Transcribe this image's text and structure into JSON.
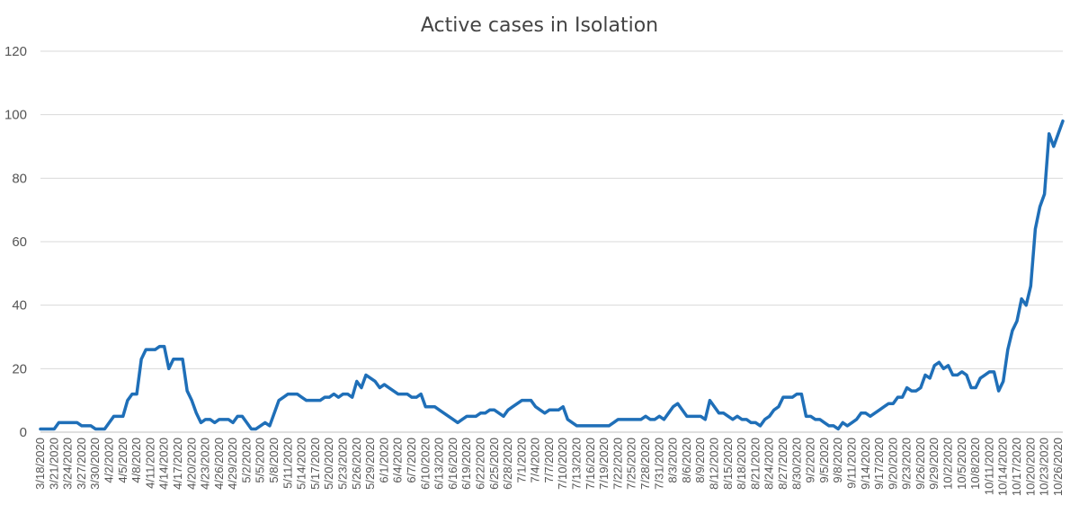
{
  "chart_data": {
    "type": "line",
    "title": "Active cases in Isolation",
    "xlabel": "",
    "ylabel": "",
    "ylim": [
      0,
      120
    ],
    "yticks": [
      0,
      20,
      40,
      60,
      80,
      100,
      120
    ],
    "grid": true,
    "legend": "none",
    "line_color": "#1f6fb8",
    "x_tick_labels": [
      "3/18/2020",
      "3/21/2020",
      "3/24/2020",
      "3/27/2020",
      "3/30/2020",
      "4/2/2020",
      "4/5/2020",
      "4/8/2020",
      "4/11/2020",
      "4/14/2020",
      "4/17/2020",
      "4/20/2020",
      "4/23/2020",
      "4/26/2020",
      "4/29/2020",
      "5/2/2020",
      "5/5/2020",
      "5/8/2020",
      "5/11/2020",
      "5/14/2020",
      "5/17/2020",
      "5/20/2020",
      "5/23/2020",
      "5/26/2020",
      "5/29/2020",
      "6/1/2020",
      "6/4/2020",
      "6/7/2020",
      "6/10/2020",
      "6/13/2020",
      "6/16/2020",
      "6/19/2020",
      "6/22/2020",
      "6/25/2020",
      "6/28/2020",
      "7/1/2020",
      "7/4/2020",
      "7/7/2020",
      "7/10/2020",
      "7/13/2020",
      "7/16/2020",
      "7/19/2020",
      "7/22/2020",
      "7/25/2020",
      "7/28/2020",
      "7/31/2020",
      "8/3/2020",
      "8/6/2020",
      "8/9/2020",
      "8/12/2020",
      "8/15/2020",
      "8/18/2020",
      "8/21/2020",
      "8/24/2020",
      "8/27/2020",
      "8/30/2020",
      "9/2/2020",
      "9/5/2020",
      "9/8/2020",
      "9/11/2020",
      "9/14/2020",
      "9/17/2020",
      "9/20/2020",
      "9/23/2020",
      "9/26/2020",
      "9/29/2020",
      "10/2/2020",
      "10/5/2020",
      "10/8/2020",
      "10/11/2020",
      "10/14/2020",
      "10/17/2020",
      "10/20/2020",
      "10/23/2020",
      "10/26/2020"
    ],
    "series": [
      {
        "start": "3/18/2020",
        "values": [
          1,
          1,
          1,
          1,
          3,
          3,
          3,
          3,
          3,
          2,
          2,
          2,
          1,
          1,
          1,
          3,
          5,
          5,
          5,
          10,
          12,
          12,
          23,
          26,
          26,
          26,
          27,
          27,
          20,
          23,
          23,
          23,
          13,
          10,
          6,
          3,
          4,
          4,
          3,
          4,
          4,
          4,
          3,
          5,
          5,
          3,
          1,
          1,
          2,
          3,
          2,
          6,
          10,
          11,
          12,
          12,
          12,
          11,
          10,
          10,
          10,
          10,
          11,
          11,
          12,
          11,
          12,
          12,
          11,
          16,
          14,
          18,
          17,
          16,
          14,
          15,
          14,
          13,
          12,
          12,
          12,
          11,
          11,
          12,
          8,
          8,
          8,
          7,
          6,
          5,
          4,
          3,
          4,
          5,
          5,
          5,
          6,
          6,
          7,
          7,
          6,
          5,
          7,
          8,
          9,
          10,
          10,
          10,
          8,
          7,
          6,
          7,
          7,
          7,
          8,
          4,
          3,
          2,
          2,
          2,
          2,
          2,
          2,
          2,
          2,
          3,
          4,
          4,
          4,
          4,
          4,
          4,
          5,
          4,
          4,
          5,
          4,
          6,
          8,
          9,
          7,
          5,
          5,
          5,
          5,
          4,
          10,
          8,
          6,
          6,
          5,
          4,
          5,
          4,
          4,
          3,
          3,
          2,
          4,
          5,
          7,
          8,
          11,
          11,
          11,
          12,
          12,
          5,
          5,
          4,
          4,
          3,
          2,
          2,
          1,
          3,
          2,
          3,
          4,
          6,
          6,
          5,
          6,
          7,
          8,
          9,
          9,
          11,
          11,
          14,
          13,
          13,
          14,
          18,
          17,
          21,
          22,
          20,
          21,
          18,
          18,
          19,
          18,
          14,
          14,
          17,
          18,
          19,
          19,
          13,
          16,
          26,
          32,
          35,
          42,
          40,
          46,
          64,
          71,
          75,
          94,
          90,
          94,
          98
        ]
      }
    ]
  }
}
